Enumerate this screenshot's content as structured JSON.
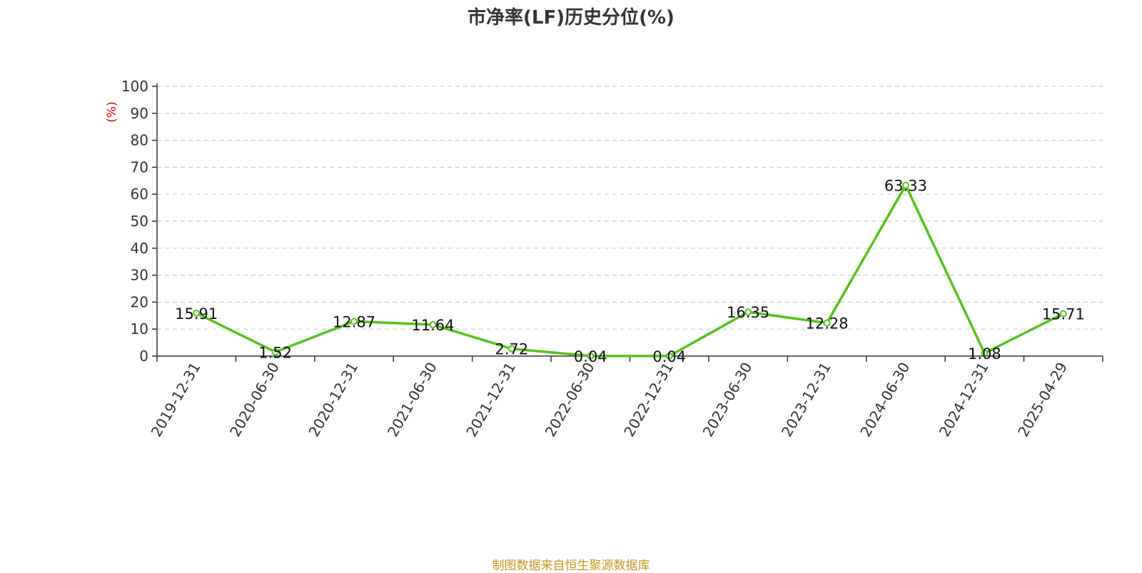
{
  "colors": {
    "line": "#52c41a",
    "axis": "#333333",
    "grid": "#cccccc",
    "ylabel": "#e00000",
    "source": "#c8941f"
  },
  "source_note": "制图数据来自恒生聚源数据库",
  "chart_data": {
    "type": "line",
    "title": "市净率(LF)历史分位(%)",
    "ylabel": "(%)",
    "xlabel": "",
    "ylim": [
      0,
      100
    ],
    "yticks": [
      0,
      10,
      20,
      30,
      40,
      50,
      60,
      70,
      80,
      90,
      100
    ],
    "grid": true,
    "categories": [
      "2019-12-31",
      "2020-06-30",
      "2020-12-31",
      "2021-06-30",
      "2021-12-31",
      "2022-06-30",
      "2022-12-31",
      "2023-06-30",
      "2023-12-31",
      "2024-06-30",
      "2024-12-31",
      "2025-04-29"
    ],
    "series": [
      {
        "values": [
          15.91,
          1.52,
          12.87,
          11.64,
          2.72,
          0.04,
          0.04,
          16.35,
          12.28,
          63.33,
          1.08,
          15.71
        ],
        "labels": [
          "15.91",
          "1.52",
          "12.87",
          "11.64",
          "2.72",
          "0.04",
          "0.04",
          "16.35",
          "12.28",
          "63.33",
          "1.08",
          "15.71"
        ]
      }
    ]
  }
}
